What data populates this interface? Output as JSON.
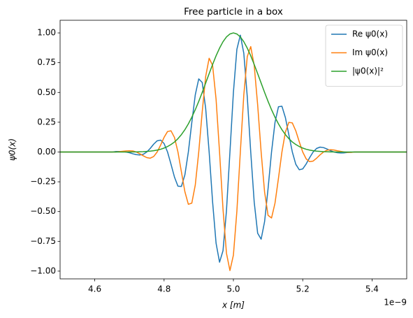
{
  "chart_data": {
    "type": "line",
    "title": "Free particle in a box",
    "xlabel": "x [m]",
    "ylabel": "ψ0(x)",
    "x_offset_label": "1e−9",
    "xlim": [
      4.5,
      5.5
    ],
    "ylim": [
      -1.065,
      1.106
    ],
    "xticks": [
      4.6,
      4.8,
      {
        "value": 5,
        "label": "5.0"
      },
      5.2,
      5.4
    ],
    "yticks": [
      {
        "value": -1,
        "label": "−1.00"
      },
      {
        "value": -0.75,
        "label": "−0.75"
      },
      {
        "value": -0.5,
        "label": "−0.50"
      },
      {
        "value": -0.25,
        "label": "−0.25"
      },
      {
        "value": 0,
        "label": "0.00"
      },
      {
        "value": 0.25,
        "label": "0.25"
      },
      {
        "value": 0.5,
        "label": "0.50"
      },
      {
        "value": 0.75,
        "label": "0.75"
      },
      {
        "value": 1,
        "label": "1.00"
      }
    ],
    "grid": false,
    "legend": "upper right",
    "x": [
      4.5,
      4.51,
      4.52,
      4.53,
      4.54,
      4.55,
      4.56,
      4.57,
      4.58,
      4.59,
      4.6,
      4.61,
      4.62,
      4.63,
      4.64,
      4.65,
      4.66,
      4.67,
      4.68,
      4.69,
      4.7,
      4.71,
      4.72,
      4.73,
      4.74,
      4.75,
      4.76,
      4.77,
      4.78,
      4.79,
      4.8,
      4.81,
      4.82,
      4.83,
      4.84,
      4.85,
      4.86,
      4.87,
      4.88,
      4.89,
      4.9,
      4.91,
      4.92,
      4.93,
      4.94,
      4.95,
      4.96,
      4.97,
      4.98,
      4.99,
      5,
      5.01,
      5.02,
      5.03,
      5.04,
      5.05,
      5.06,
      5.07,
      5.08,
      5.09,
      5.1,
      5.11,
      5.12,
      5.13,
      5.14,
      5.15,
      5.16,
      5.17,
      5.18,
      5.19,
      5.2,
      5.21,
      5.22,
      5.23,
      5.24,
      5.25,
      5.26,
      5.27,
      5.28,
      5.29,
      5.3,
      5.31,
      5.32,
      5.33,
      5.34,
      5.35,
      5.36,
      5.37,
      5.38,
      5.39,
      5.4,
      5.41,
      5.42,
      5.43,
      5.44,
      5.45,
      5.46,
      5.47,
      5.48,
      5.49,
      5.5
    ],
    "series": [
      {
        "name": "Re ψ0(x)",
        "color": "#1f77b4",
        "values": [
          0,
          0,
          0,
          0,
          0,
          0,
          0,
          0,
          0,
          0,
          0,
          0,
          0,
          0,
          0,
          0,
          0.004,
          0.004,
          0.004,
          0,
          -0.006,
          -0.015,
          -0.022,
          -0.025,
          -0.019,
          0,
          0.03,
          0.066,
          0.094,
          0.1,
          0.071,
          0,
          -0.103,
          -0.211,
          -0.287,
          -0.289,
          -0.192,
          0,
          0.248,
          0.48,
          0.614,
          0.584,
          0.366,
          0,
          -0.42,
          -0.766,
          -0.925,
          -0.829,
          -0.491,
          0,
          0.5,
          0.862,
          0.981,
          0.829,
          0.463,
          0,
          -0.42,
          -0.682,
          -0.732,
          -0.584,
          -0.307,
          0,
          0.248,
          0.38,
          0.384,
          0.289,
          0.144,
          0,
          -0.103,
          -0.149,
          -0.142,
          -0.1,
          -0.047,
          0,
          0.03,
          0.041,
          0.037,
          0.025,
          0.011,
          0,
          -0.006,
          -0.008,
          -0.007,
          -0.004,
          -0.002,
          0,
          0,
          0,
          0,
          0,
          0,
          0,
          0,
          0,
          0,
          0,
          0,
          0,
          0,
          0,
          0
        ]
      },
      {
        "name": "Im ψ0(x)",
        "color": "#ff7f0e",
        "values": [
          0,
          0,
          0,
          0,
          0,
          0,
          0,
          0,
          0,
          0,
          0,
          0,
          0,
          0,
          0,
          0,
          0,
          0.003,
          0.006,
          0.009,
          0.01,
          0.009,
          0,
          -0.015,
          -0.032,
          -0.047,
          -0.052,
          -0.038,
          0,
          0.058,
          0.123,
          0.172,
          0.178,
          0.122,
          0,
          -0.167,
          -0.333,
          -0.439,
          -0.429,
          -0.277,
          0,
          0.337,
          0.634,
          0.787,
          0.727,
          0.443,
          0,
          -0.479,
          -0.85,
          -0.995,
          -0.866,
          -0.498,
          0,
          0.479,
          0.801,
          0.885,
          0.727,
          0.394,
          0,
          -0.337,
          -0.532,
          -0.554,
          -0.429,
          -0.22,
          0,
          0.167,
          0.249,
          0.244,
          0.178,
          0.086,
          0,
          -0.058,
          -0.081,
          -0.076,
          -0.052,
          -0.024,
          0,
          0.015,
          0.019,
          0.017,
          0.01,
          0.005,
          0,
          -0.003,
          -0.003,
          0,
          0,
          0,
          0,
          0,
          0,
          0,
          0,
          0,
          0,
          0,
          0,
          0,
          0,
          0,
          0
        ]
      },
      {
        "name": "|ψ0(x)|²",
        "color": "#2ca02c",
        "values": [
          0,
          0,
          0,
          0,
          0,
          0,
          0,
          0,
          0,
          0,
          0,
          0,
          0,
          0,
          0,
          0,
          0,
          0,
          0,
          0,
          0,
          0.001,
          0.001,
          0.002,
          0.003,
          0.005,
          0.007,
          0.011,
          0.016,
          0.023,
          0.033,
          0.046,
          0.063,
          0.084,
          0.112,
          0.146,
          0.187,
          0.236,
          0.292,
          0.355,
          0.425,
          0.5,
          0.579,
          0.658,
          0.735,
          0.808,
          0.872,
          0.926,
          0.966,
          0.991,
          1,
          0.991,
          0.966,
          0.926,
          0.872,
          0.808,
          0.735,
          0.658,
          0.579,
          0.5,
          0.425,
          0.355,
          0.292,
          0.236,
          0.187,
          0.146,
          0.112,
          0.084,
          0.063,
          0.046,
          0.033,
          0.023,
          0.016,
          0.011,
          0.007,
          0.005,
          0.003,
          0.002,
          0.001,
          0.001,
          0,
          0,
          0,
          0,
          0,
          0,
          0,
          0,
          0,
          0,
          0,
          0,
          0,
          0,
          0,
          0,
          0,
          0,
          0,
          0,
          0
        ]
      }
    ]
  }
}
